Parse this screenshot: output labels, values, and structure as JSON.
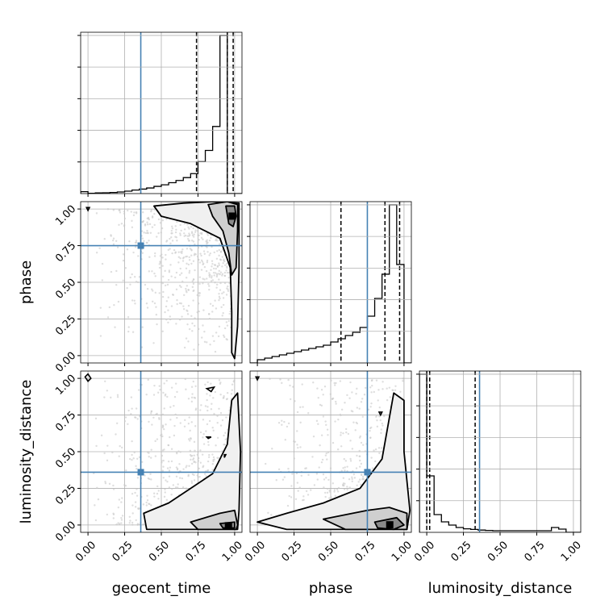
{
  "chart_data": {
    "type": "corner",
    "parameters": [
      "geocent_time",
      "phase",
      "luminosity_distance"
    ],
    "tick_values": [
      0.0,
      0.25,
      0.5,
      0.75,
      1.0
    ],
    "tick_labels": [
      "0.00",
      "0.25",
      "0.50",
      "0.75",
      "1.00"
    ],
    "axis_range": [
      -0.05,
      1.05
    ],
    "colors": {
      "truth": "#4682b4",
      "contour": "#000000",
      "grid": "#b0b0b0"
    },
    "truths": {
      "geocent_time": 0.36,
      "phase": 0.75,
      "luminosity_distance": 0.36
    },
    "histograms": [
      {
        "parameter": "geocent_time",
        "bin_edges": [
          -0.05,
          0.0,
          0.05,
          0.1,
          0.15,
          0.2,
          0.25,
          0.3,
          0.35,
          0.4,
          0.45,
          0.5,
          0.55,
          0.6,
          0.65,
          0.7,
          0.75,
          0.8,
          0.85,
          0.9,
          0.95,
          1.0,
          1.05
        ],
        "counts": [
          0.012,
          0.002,
          0.004,
          0.005,
          0.007,
          0.01,
          0.015,
          0.022,
          0.028,
          0.035,
          0.045,
          0.055,
          0.068,
          0.082,
          0.1,
          0.125,
          0.2,
          0.27,
          0.42,
          0.99,
          0.0,
          0.0
        ],
        "quantiles": [
          0.74,
          0.95,
          0.99
        ]
      },
      {
        "parameter": "phase",
        "bin_edges": [
          -0.05,
          0.0,
          0.05,
          0.1,
          0.15,
          0.2,
          0.25,
          0.3,
          0.35,
          0.4,
          0.45,
          0.5,
          0.55,
          0.6,
          0.65,
          0.7,
          0.75,
          0.8,
          0.85,
          0.9,
          0.95,
          1.0,
          1.05
        ],
        "counts": [
          0.0,
          0.02,
          0.03,
          0.04,
          0.05,
          0.06,
          0.07,
          0.08,
          0.09,
          0.1,
          0.11,
          0.13,
          0.15,
          0.17,
          0.19,
          0.22,
          0.29,
          0.4,
          0.55,
          0.98,
          0.61,
          0.0
        ],
        "quantiles": [
          0.57,
          0.87,
          0.97
        ]
      },
      {
        "parameter": "luminosity_distance",
        "bin_edges": [
          -0.05,
          0.0,
          0.05,
          0.1,
          0.15,
          0.2,
          0.25,
          0.3,
          0.35,
          0.4,
          0.45,
          0.5,
          0.55,
          0.6,
          0.65,
          0.7,
          0.75,
          0.8,
          0.85,
          0.9,
          0.95,
          1.0,
          1.05
        ],
        "counts": [
          0.98,
          0.35,
          0.11,
          0.065,
          0.045,
          0.03,
          0.022,
          0.018,
          0.014,
          0.012,
          0.01,
          0.01,
          0.01,
          0.01,
          0.01,
          0.01,
          0.01,
          0.01,
          0.03,
          0.02,
          0.0,
          0.0
        ],
        "quantiles": [
          0.0,
          0.02,
          0.33
        ]
      }
    ],
    "contour_panels": [
      {
        "x": "geocent_time",
        "y": "phase",
        "levels": [
          {
            "fill": "#f0f0f0",
            "points": [
              [
                0.45,
                1.02
              ],
              [
                0.65,
                1.04
              ],
              [
                0.85,
                1.05
              ],
              [
                1.03,
                1.04
              ],
              [
                1.03,
                0.6
              ],
              [
                1.02,
                0.2
              ],
              [
                1.0,
                -0.02
              ],
              [
                0.98,
                0.02
              ],
              [
                0.98,
                0.3
              ],
              [
                0.97,
                0.6
              ],
              [
                0.9,
                0.8
              ],
              [
                0.7,
                0.9
              ],
              [
                0.5,
                0.95
              ]
            ]
          },
          {
            "fill": "#cfcfcf",
            "points": [
              [
                0.82,
                1.03
              ],
              [
                0.95,
                1.05
              ],
              [
                1.02,
                1.03
              ],
              [
                1.02,
                0.85
              ],
              [
                1.01,
                0.6
              ],
              [
                0.98,
                0.55
              ],
              [
                0.96,
                0.7
              ],
              [
                0.92,
                0.85
              ],
              [
                0.85,
                0.95
              ]
            ]
          },
          {
            "fill": "#8a8a8a",
            "points": [
              [
                0.94,
                1.02
              ],
              [
                1.0,
                1.02
              ],
              [
                1.01,
                0.95
              ],
              [
                0.99,
                0.88
              ],
              [
                0.96,
                0.9
              ]
            ]
          }
        ],
        "small_contours": [
          {
            "points": [
              [
                -0.01,
                1.01
              ],
              [
                0.01,
                1.01
              ],
              [
                0.0,
                0.99
              ]
            ]
          }
        ]
      },
      {
        "x": "geocent_time",
        "y": "luminosity_distance",
        "levels": [
          {
            "fill": "#f0f0f0",
            "points": [
              [
                0.38,
                0.08
              ],
              [
                0.55,
                0.15
              ],
              [
                0.7,
                0.25
              ],
              [
                0.85,
                0.35
              ],
              [
                0.95,
                0.55
              ],
              [
                0.98,
                0.85
              ],
              [
                1.02,
                0.9
              ],
              [
                1.04,
                0.5
              ],
              [
                1.03,
                0.1
              ],
              [
                1.02,
                -0.03
              ],
              [
                0.4,
                -0.03
              ]
            ]
          },
          {
            "fill": "#cfcfcf",
            "points": [
              [
                0.7,
                0.02
              ],
              [
                0.9,
                0.08
              ],
              [
                1.0,
                0.1
              ],
              [
                1.02,
                0.0
              ],
              [
                1.01,
                -0.03
              ],
              [
                0.75,
                -0.03
              ]
            ]
          },
          {
            "fill": "#8a8a8a",
            "points": [
              [
                0.9,
                0.01
              ],
              [
                1.0,
                0.02
              ],
              [
                1.0,
                -0.02
              ],
              [
                0.92,
                -0.02
              ]
            ]
          }
        ],
        "small_contours": [
          {
            "points": [
              [
                -0.02,
                1.01
              ],
              [
                0.0,
                1.03
              ],
              [
                0.02,
                1.0
              ],
              [
                0.0,
                0.98
              ]
            ]
          },
          {
            "points": [
              [
                0.81,
                0.93
              ],
              [
                0.86,
                0.94
              ],
              [
                0.84,
                0.91
              ]
            ]
          },
          {
            "points": [
              [
                0.81,
                0.6
              ],
              [
                0.84,
                0.6
              ],
              [
                0.82,
                0.59
              ]
            ]
          },
          {
            "points": [
              [
                0.93,
                0.48
              ],
              [
                0.94,
                0.48
              ],
              [
                0.93,
                0.46
              ]
            ]
          }
        ]
      },
      {
        "x": "phase",
        "y": "luminosity_distance",
        "levels": [
          {
            "fill": "#f0f0f0",
            "points": [
              [
                0.0,
                0.02
              ],
              [
                0.2,
                0.08
              ],
              [
                0.45,
                0.15
              ],
              [
                0.7,
                0.25
              ],
              [
                0.85,
                0.45
              ],
              [
                0.93,
                0.9
              ],
              [
                1.0,
                0.85
              ],
              [
                1.0,
                0.5
              ],
              [
                1.04,
                0.1
              ],
              [
                1.02,
                -0.03
              ],
              [
                0.6,
                -0.03
              ],
              [
                0.2,
                -0.03
              ]
            ]
          },
          {
            "fill": "#cfcfcf",
            "points": [
              [
                0.45,
                0.04
              ],
              [
                0.75,
                0.1
              ],
              [
                0.9,
                0.12
              ],
              [
                1.02,
                0.08
              ],
              [
                1.02,
                -0.03
              ],
              [
                0.6,
                -0.03
              ]
            ]
          },
          {
            "fill": "#8a8a8a",
            "points": [
              [
                0.8,
                0.02
              ],
              [
                0.95,
                0.05
              ],
              [
                1.0,
                0.0
              ],
              [
                0.93,
                -0.03
              ],
              [
                0.82,
                -0.02
              ]
            ]
          }
        ],
        "small_contours": [
          {
            "points": [
              [
                -0.01,
                1.01
              ],
              [
                0.01,
                1.01
              ],
              [
                0.0,
                0.99
              ]
            ]
          },
          {
            "points": [
              [
                0.83,
                0.77
              ],
              [
                0.85,
                0.77
              ],
              [
                0.84,
                0.75
              ]
            ]
          }
        ]
      }
    ]
  }
}
